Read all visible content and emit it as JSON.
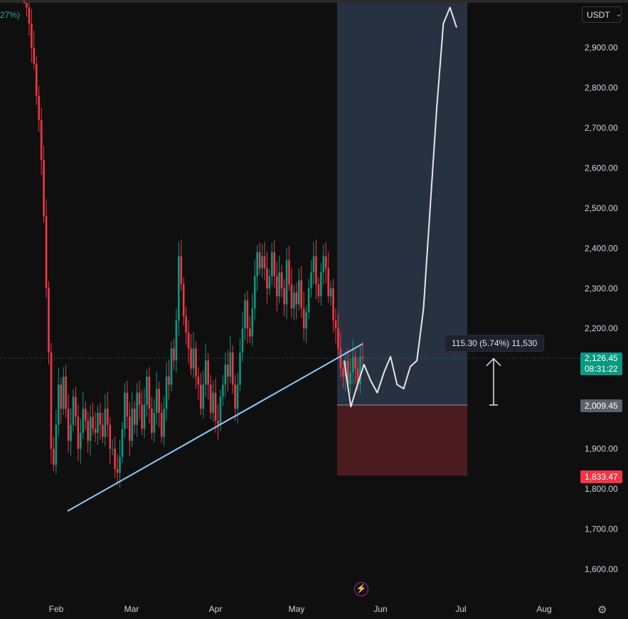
{
  "toolbar": {
    "currency": "USDT"
  },
  "overlay": {
    "top_left_pct": "27%)"
  },
  "price_labels": {
    "current_price": "2,126.45",
    "countdown": "08:31:22",
    "entry": "2,009.45",
    "stop": "1,833.47"
  },
  "measure": {
    "label": "115.30 (5.74%) 11,530"
  },
  "colors": {
    "up": "#089981",
    "down": "#f23645",
    "trendline": "#90caf9",
    "profit_zone": "#2a3444",
    "loss_zone": "#4a1c20",
    "projection": "#e6e6e6"
  },
  "icons": {
    "replay": "lightning-icon",
    "settings": "gear-icon",
    "dropdown": "chevron-down-icon"
  },
  "chart_data": {
    "type": "candlestick",
    "y_axis": {
      "ticks": [
        "1,600.00",
        "1,700.00",
        "1,800.00",
        "1,900.00",
        "2,000.00",
        "2,100.00",
        "2,200.00",
        "2,300.00",
        "2,400.00",
        "2,500.00",
        "2,600.00",
        "2,700.00",
        "2,800.00",
        "2,900.00"
      ],
      "range": [
        1550,
        2980
      ]
    },
    "x_axis": {
      "ticks": [
        "Feb",
        "Mar",
        "Apr",
        "May",
        "Jun",
        "Jul",
        "Aug"
      ]
    },
    "series": [
      {
        "close": [
          3080,
          3000,
          2960,
          2900,
          2860,
          2780,
          2720,
          2620,
          2480,
          2300,
          2140,
          1900,
          1860,
          1960,
          2060,
          2000,
          2080,
          2000,
          1920,
          1960,
          2030,
          1980,
          1900,
          1940,
          2000,
          1970,
          1920,
          1980,
          1950,
          1940,
          1990,
          1960,
          1930,
          2000,
          1960,
          1900,
          1900,
          1850,
          1840,
          1880,
          1950,
          2040,
          1980,
          1920,
          2000,
          1960,
          2040,
          2010,
          1950,
          2010,
          2080,
          2000,
          1940,
          1990,
          2050,
          1990,
          1930,
          2000,
          2080,
          2060,
          2150,
          2120,
          2220,
          2380,
          2310,
          2230,
          2190,
          2150,
          2100,
          2150,
          2080,
          2060,
          2000,
          2060,
          2120,
          2060,
          1990,
          2040,
          1970,
          1960,
          2030,
          2060,
          2110,
          2080,
          2140,
          2060,
          2000,
          2060,
          2140,
          2200,
          2270,
          2200,
          2180,
          2250,
          2330,
          2390,
          2350,
          2380,
          2350,
          2300,
          2330,
          2390,
          2330,
          2280,
          2340,
          2300,
          2260,
          2370,
          2310,
          2250,
          2290,
          2260,
          2320,
          2250,
          2200,
          2240,
          2300,
          2340,
          2380,
          2310,
          2280,
          2340,
          2380,
          2350,
          2280,
          2300,
          2220,
          2200,
          2150,
          2100,
          2080,
          2120,
          2060,
          2090,
          2130,
          2100,
          2060,
          2130,
          2126
        ]
      }
    ],
    "trendline": {
      "points": [
        [
          "early Feb",
          1745
        ],
        [
          "late May",
          2162
        ]
      ]
    },
    "position": {
      "entry": 2009.45,
      "stop": 1833.47,
      "target_above": 2980
    },
    "measure": {
      "change": 115.3,
      "percent": 5.74,
      "ticks": 11530
    },
    "projection": [
      2120,
      2005,
      2060,
      2110,
      2070,
      2040,
      2090,
      2130,
      2060,
      2050,
      2105,
      2120,
      2250,
      2500,
      2750,
      2960,
      3000,
      2950
    ]
  }
}
